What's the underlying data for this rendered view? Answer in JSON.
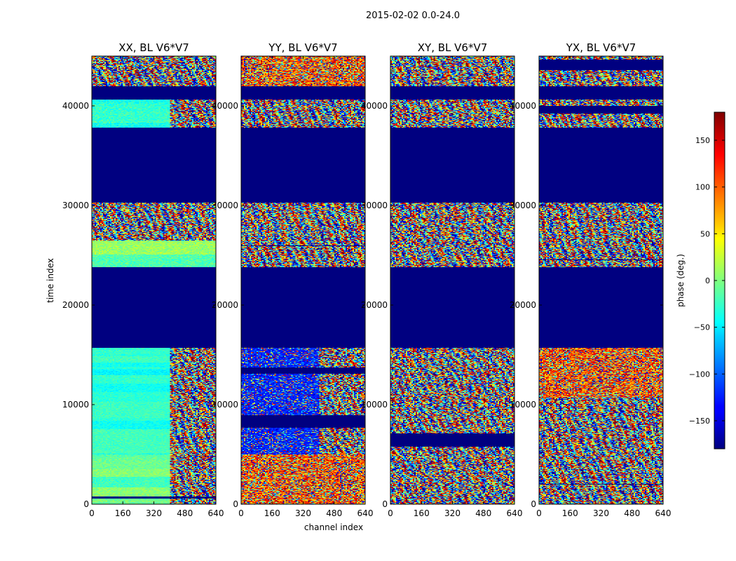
{
  "chart_data": {
    "type": "heatmap",
    "title": "2015-02-02 0.0-24.0",
    "xlabel": "channel index",
    "ylabel": "time index",
    "xlim": [
      0,
      640
    ],
    "ylim": [
      0,
      45000
    ],
    "x_ticks": [
      0,
      160,
      320,
      480,
      640
    ],
    "y_ticks": [
      0,
      10000,
      20000,
      30000,
      40000
    ],
    "colormap": "jet",
    "colorbar": {
      "label": "phase (deg.)",
      "range": [
        -180,
        180
      ],
      "ticks": [
        -150,
        -100,
        -50,
        0,
        50,
        100,
        150
      ],
      "tick_labels": [
        "−150",
        "−100",
        "−50",
        "0",
        "50",
        "100",
        "150"
      ]
    },
    "flagged_time_ranges": [
      [
        15700,
        23800
      ],
      [
        30300,
        37800
      ],
      [
        40600,
        42000
      ]
    ],
    "panels": [
      {
        "name": "XX, BL V6*V7",
        "segments": [
          {
            "t0": 0,
            "t1": 5000,
            "c0": 0,
            "c1": 400,
            "pattern": "mid",
            "base": -10,
            "spread": 30
          },
          {
            "t0": 0,
            "t1": 5000,
            "c0": 400,
            "c1": 640,
            "pattern": "noise"
          },
          {
            "t0": 5000,
            "t1": 15700,
            "c0": 0,
            "c1": 400,
            "pattern": "mid",
            "base": -35,
            "spread": 25
          },
          {
            "t0": 5000,
            "t1": 15700,
            "c0": 400,
            "c1": 640,
            "pattern": "noise"
          },
          {
            "t0": 23800,
            "t1": 26500,
            "c0": 0,
            "c1": 640,
            "pattern": "mid",
            "base": -5,
            "spread": 40
          },
          {
            "t0": 26500,
            "t1": 30300,
            "c0": 0,
            "c1": 640,
            "pattern": "noise"
          },
          {
            "t0": 37800,
            "t1": 40600,
            "c0": 0,
            "c1": 400,
            "pattern": "mid",
            "base": -30,
            "spread": 40
          },
          {
            "t0": 37800,
            "t1": 40600,
            "c0": 400,
            "c1": 640,
            "pattern": "noise"
          },
          {
            "t0": 42000,
            "t1": 45000,
            "c0": 0,
            "c1": 640,
            "pattern": "noise"
          }
        ]
      },
      {
        "name": "YY, BL V6*V7",
        "segments": [
          {
            "t0": 0,
            "t1": 5000,
            "c0": 0,
            "c1": 640,
            "pattern": "warm"
          },
          {
            "t0": 5000,
            "t1": 15700,
            "c0": 0,
            "c1": 400,
            "pattern": "blue"
          },
          {
            "t0": 5000,
            "t1": 15700,
            "c0": 400,
            "c1": 640,
            "pattern": "noise"
          },
          {
            "t0": 23800,
            "t1": 26500,
            "c0": 0,
            "c1": 640,
            "pattern": "noise"
          },
          {
            "t0": 26500,
            "t1": 30300,
            "c0": 0,
            "c1": 640,
            "pattern": "noise"
          },
          {
            "t0": 37800,
            "t1": 40600,
            "c0": 0,
            "c1": 640,
            "pattern": "noise"
          },
          {
            "t0": 42000,
            "t1": 45000,
            "c0": 0,
            "c1": 640,
            "pattern": "warm"
          }
        ]
      },
      {
        "name": "XY, BL V6*V7",
        "segments": [
          {
            "t0": 0,
            "t1": 15700,
            "c0": 0,
            "c1": 640,
            "pattern": "noise"
          },
          {
            "t0": 23800,
            "t1": 30300,
            "c0": 0,
            "c1": 640,
            "pattern": "noise"
          },
          {
            "t0": 37800,
            "t1": 40600,
            "c0": 0,
            "c1": 640,
            "pattern": "noise"
          },
          {
            "t0": 42000,
            "t1": 45000,
            "c0": 0,
            "c1": 640,
            "pattern": "noise"
          }
        ]
      },
      {
        "name": "YX, BL V6*V7",
        "segments": [
          {
            "t0": 0,
            "t1": 10700,
            "c0": 0,
            "c1": 640,
            "pattern": "noise"
          },
          {
            "t0": 10700,
            "t1": 15700,
            "c0": 0,
            "c1": 640,
            "pattern": "warm"
          },
          {
            "t0": 23800,
            "t1": 30300,
            "c0": 0,
            "c1": 640,
            "pattern": "noise"
          },
          {
            "t0": 37800,
            "t1": 40600,
            "c0": 0,
            "c1": 640,
            "pattern": "noise"
          },
          {
            "t0": 42000,
            "t1": 45000,
            "c0": 0,
            "c1": 640,
            "pattern": "noise"
          }
        ]
      }
    ]
  }
}
